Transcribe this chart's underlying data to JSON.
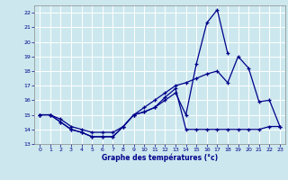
{
  "xlabel": "Graphe des températures (°c)",
  "bg_color": "#cce8ee",
  "grid_color": "#ffffff",
  "line_color": "#00008b",
  "xlim": [
    -0.5,
    23.5
  ],
  "ylim": [
    13,
    22.5
  ],
  "xticks": [
    0,
    1,
    2,
    3,
    4,
    5,
    6,
    7,
    8,
    9,
    10,
    11,
    12,
    13,
    14,
    15,
    16,
    17,
    18,
    19,
    20,
    21,
    22,
    23
  ],
  "yticks": [
    13,
    14,
    15,
    16,
    17,
    18,
    19,
    20,
    21,
    22
  ],
  "line1_x": [
    0,
    1,
    2,
    3,
    4,
    5,
    6,
    7,
    8,
    9,
    10,
    11,
    12,
    13,
    14,
    15,
    16,
    17,
    18
  ],
  "line1_y": [
    15.0,
    15.0,
    14.5,
    14.0,
    13.8,
    13.5,
    13.5,
    13.5,
    14.2,
    15.0,
    15.2,
    15.5,
    16.0,
    16.5,
    15.0,
    18.5,
    21.3,
    22.2,
    19.2
  ],
  "line2_x": [
    0,
    1,
    2,
    3,
    4,
    5,
    6,
    7,
    8,
    9,
    10,
    11,
    12,
    13,
    14,
    15,
    16,
    17,
    18,
    19,
    20,
    21,
    22,
    23
  ],
  "line2_y": [
    15.0,
    15.0,
    14.7,
    14.2,
    14.0,
    13.8,
    13.8,
    13.8,
    14.2,
    15.0,
    15.5,
    16.0,
    16.5,
    17.0,
    17.2,
    17.5,
    17.8,
    18.0,
    17.2,
    19.0,
    18.2,
    15.9,
    16.0,
    14.2
  ],
  "line3_x": [
    0,
    1,
    2,
    3,
    4,
    5,
    6,
    7,
    8,
    9,
    10,
    11,
    12,
    13,
    14,
    15,
    16,
    17,
    18,
    19,
    20,
    21,
    22,
    23
  ],
  "line3_y": [
    15.0,
    15.0,
    14.5,
    14.0,
    13.8,
    13.5,
    13.5,
    13.5,
    14.2,
    15.0,
    15.2,
    15.5,
    16.2,
    16.8,
    14.0,
    14.0,
    14.0,
    14.0,
    14.0,
    14.0,
    14.0,
    14.0,
    14.2,
    14.2
  ]
}
